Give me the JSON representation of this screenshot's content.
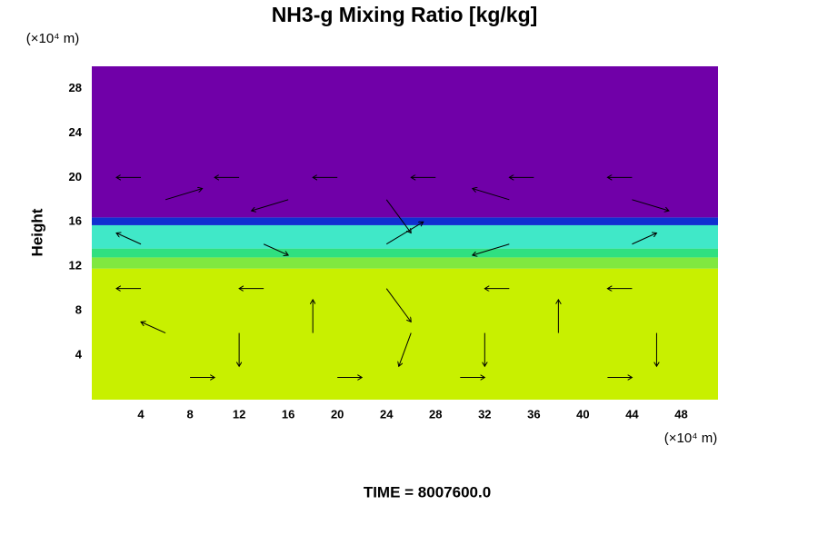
{
  "chart_data": {
    "type": "field",
    "title": "NH3-g Mixing Ratio [kg/kg]",
    "y_unit_label": "(×10⁴ m)",
    "x_unit_label": "(×10⁴ m)",
    "ylabel": "Height",
    "time_label": "TIME = 8007600.0",
    "xlim": [
      0,
      51
    ],
    "ylim": [
      0,
      30
    ],
    "xticks": [
      4,
      8,
      12,
      16,
      20,
      24,
      28,
      32,
      36,
      40,
      44,
      48
    ],
    "yticks": [
      4,
      8,
      12,
      16,
      20,
      24,
      28
    ],
    "regions": [
      {
        "y0": 0,
        "y1": 11.8,
        "color": "#c8f000"
      },
      {
        "y0": 11.8,
        "y1": 12.8,
        "color": "#80e840"
      },
      {
        "y0": 12.8,
        "y1": 13.6,
        "color": "#30e080"
      },
      {
        "y0": 13.6,
        "y1": 15.7,
        "color": "#40e8c8"
      },
      {
        "y0": 15.7,
        "y1": 16.4,
        "color": "#1030d0"
      },
      {
        "y0": 16.4,
        "y1": 30,
        "color": "#7000a8"
      }
    ],
    "vectors": [
      {
        "x": 4,
        "y": 20,
        "u": -2,
        "v": 0
      },
      {
        "x": 12,
        "y": 20,
        "u": -2,
        "v": 0
      },
      {
        "x": 20,
        "y": 20,
        "u": -2,
        "v": 0
      },
      {
        "x": 28,
        "y": 20,
        "u": -2,
        "v": 0
      },
      {
        "x": 36,
        "y": 20,
        "u": -2,
        "v": 0
      },
      {
        "x": 44,
        "y": 20,
        "u": -2,
        "v": 0
      },
      {
        "x": 6,
        "y": 18,
        "u": 3,
        "v": 1
      },
      {
        "x": 16,
        "y": 18,
        "u": -3,
        "v": -1
      },
      {
        "x": 24,
        "y": 18,
        "u": 2,
        "v": -3
      },
      {
        "x": 34,
        "y": 18,
        "u": -3,
        "v": 1
      },
      {
        "x": 44,
        "y": 18,
        "u": 3,
        "v": -1
      },
      {
        "x": 4,
        "y": 14,
        "u": -2,
        "v": 1
      },
      {
        "x": 14,
        "y": 14,
        "u": 2,
        "v": -1
      },
      {
        "x": 24,
        "y": 14,
        "u": 3,
        "v": 2
      },
      {
        "x": 34,
        "y": 14,
        "u": -3,
        "v": -1
      },
      {
        "x": 44,
        "y": 14,
        "u": 2,
        "v": 1
      },
      {
        "x": 4,
        "y": 10,
        "u": -2,
        "v": 0
      },
      {
        "x": 14,
        "y": 10,
        "u": -2,
        "v": 0
      },
      {
        "x": 24,
        "y": 10,
        "u": 2,
        "v": -3
      },
      {
        "x": 34,
        "y": 10,
        "u": -2,
        "v": 0
      },
      {
        "x": 44,
        "y": 10,
        "u": -2,
        "v": 0
      },
      {
        "x": 6,
        "y": 6,
        "u": -2,
        "v": 1
      },
      {
        "x": 12,
        "y": 6,
        "u": 0,
        "v": -3
      },
      {
        "x": 18,
        "y": 6,
        "u": 0,
        "v": 3
      },
      {
        "x": 26,
        "y": 6,
        "u": -1,
        "v": -3
      },
      {
        "x": 32,
        "y": 6,
        "u": 0,
        "v": -3
      },
      {
        "x": 38,
        "y": 6,
        "u": 0,
        "v": 3
      },
      {
        "x": 46,
        "y": 6,
        "u": 0,
        "v": -3
      },
      {
        "x": 8,
        "y": 2,
        "u": 2,
        "v": 0
      },
      {
        "x": 20,
        "y": 2,
        "u": 2,
        "v": 0
      },
      {
        "x": 30,
        "y": 2,
        "u": 2,
        "v": 0
      },
      {
        "x": 42,
        "y": 2,
        "u": 2,
        "v": 0
      }
    ]
  }
}
